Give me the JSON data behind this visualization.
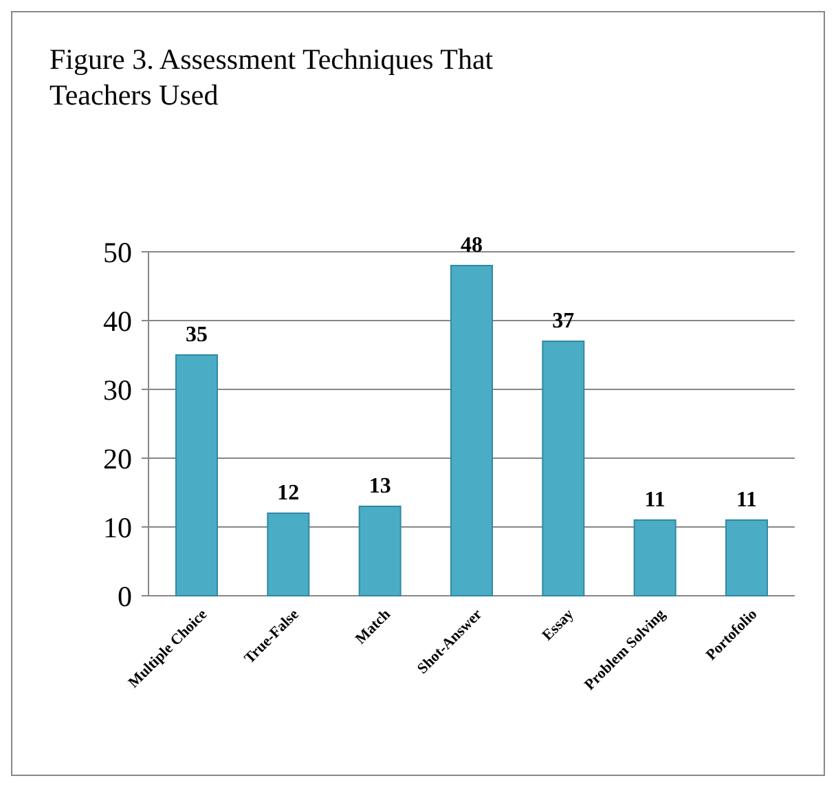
{
  "chart_data": {
    "type": "bar",
    "title": "Figure 3. Assessment Techniques That Teachers Used",
    "categories": [
      "Multiple Choice",
      "True-False",
      "Match",
      "Shot-Answer",
      "Essay",
      "Problem Solving",
      "Portofolio"
    ],
    "values": [
      35,
      12,
      13,
      48,
      37,
      11,
      11
    ],
    "color": "#4bacc6",
    "ylim": [
      0,
      50
    ],
    "yticks": [
      0,
      10,
      20,
      30,
      40,
      50
    ],
    "grid": "y",
    "data_labels": true
  }
}
